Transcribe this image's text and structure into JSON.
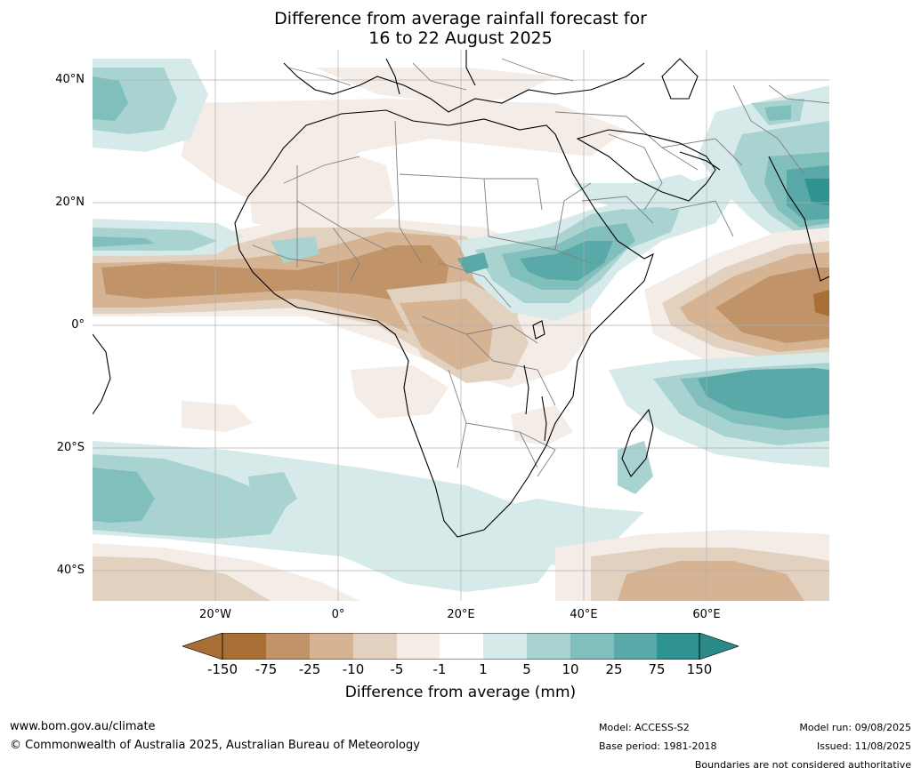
{
  "title": {
    "line1": "Difference from average rainfall forecast for",
    "line2": "16 to 22 August 2025"
  },
  "map": {
    "lat_labels": [
      "40°N",
      "20°N",
      "0°",
      "20°S",
      "40°S"
    ],
    "lon_labels": [
      "20°W",
      "0°",
      "20°E",
      "40°E",
      "60°E"
    ],
    "colors": {
      "c_lt150": "#a86f35",
      "c_m75": "#c09468",
      "c_m25": "#d5b393",
      "c_m10": "#e3d1c0",
      "c_m5": "#f4ece6",
      "c_0": "#ffffff",
      "c_p1": "#d5eae9",
      "c_p5": "#a9d3d1",
      "c_p10": "#80bfbc",
      "c_p25": "#58a9a7",
      "c_p75": "#2f9490",
      "c_gt150": "#2a8a87",
      "land_outline": "#000000",
      "border": "#808080"
    }
  },
  "colorbar": {
    "ticks": [
      "-150",
      "-75",
      "-25",
      "-10",
      "-5",
      "-1",
      "1",
      "5",
      "10",
      "25",
      "75",
      "150"
    ],
    "label": "Difference from average (mm)"
  },
  "footer": {
    "website": "www.bom.gov.au/climate",
    "copyright": "© Commonwealth of Australia 2025, Australian Bureau of Meteorology",
    "model": "Model: ACCESS-S2",
    "base_period": "Base period: 1981-2018",
    "model_run": "Model run: 09/08/2025",
    "issued": "Issued: 11/08/2025",
    "disclaimer": "Boundaries are not considered authoritative"
  }
}
